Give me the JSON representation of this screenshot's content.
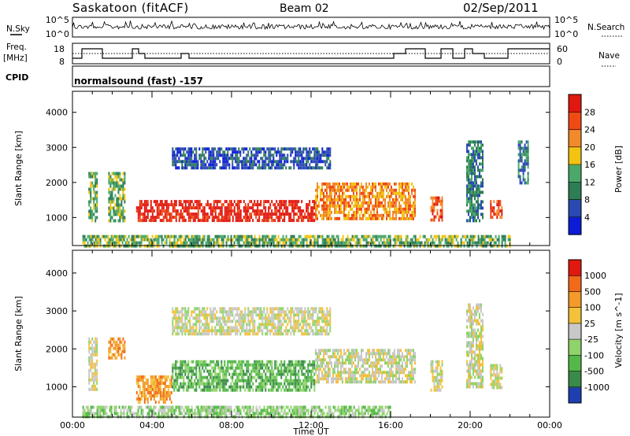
{
  "header": {
    "station": "Saskatoon (fitACF)",
    "beam": "Beam 02",
    "date": "02/Sep/2011"
  },
  "noise_panel": {
    "left_label": "N.Sky",
    "right_label": "N.Search",
    "left_ticks": [
      "10^5",
      "10^0"
    ],
    "right_ticks": [
      "10^5",
      "10^0"
    ]
  },
  "freq_panel": {
    "left_label_line1": "Freq.",
    "left_label_line2": "[MHz]",
    "right_label": "Nave",
    "left_ticks": [
      "18",
      "8"
    ],
    "right_ticks": [
      "60",
      "0"
    ]
  },
  "cpid": {
    "label": "CPID",
    "value": "normalsound (fast) -157"
  },
  "chart_data": [
    {
      "type": "heatmap",
      "title": "Power",
      "ylabel": "Slant Range [km]",
      "xlabel": "Time UT",
      "ylim": [
        200,
        4600
      ],
      "yticks": [
        "1000",
        "2000",
        "3000",
        "4000"
      ],
      "colorbar": {
        "label": "Power [dB]",
        "ticks": [
          "4",
          "8",
          "12",
          "16",
          "20",
          "24",
          "28"
        ],
        "colors": [
          "#0b1bd6",
          "#2a49b3",
          "#2d7d55",
          "#4aa86a",
          "#f2c411",
          "#f2892a",
          "#f04a14",
          "#e01810"
        ]
      },
      "echo_regions": [
        {
          "t0": 0.8,
          "t1": 1.2,
          "r0": 900,
          "r1": 2300,
          "level": 3
        },
        {
          "t0": 1.8,
          "t1": 2.6,
          "r0": 900,
          "r1": 2300,
          "level": 3
        },
        {
          "t0": 3.2,
          "t1": 8.8,
          "r0": 950,
          "r1": 1500,
          "level": 7
        },
        {
          "t0": 8.8,
          "t1": 12.2,
          "r0": 950,
          "r1": 1500,
          "level": 7
        },
        {
          "t0": 12.2,
          "t1": 17.2,
          "r0": 1000,
          "r1": 2000,
          "level": 5
        },
        {
          "t0": 5.0,
          "t1": 13.0,
          "r0": 2400,
          "r1": 3000,
          "level": 1
        },
        {
          "t0": 18.0,
          "t1": 18.6,
          "r0": 900,
          "r1": 1600,
          "level": 6
        },
        {
          "t0": 19.8,
          "t1": 20.6,
          "r0": 900,
          "r1": 3200,
          "level": 2
        },
        {
          "t0": 21.0,
          "t1": 21.6,
          "r0": 1000,
          "r1": 1500,
          "level": 6
        },
        {
          "t0": 22.4,
          "t1": 22.9,
          "r0": 2000,
          "r1": 3200,
          "level": 2
        },
        {
          "t0": 0.5,
          "t1": 22.0,
          "r0": 200,
          "r1": 500,
          "level": 3
        }
      ]
    },
    {
      "type": "heatmap",
      "title": "Velocity",
      "ylabel": "Slant Range [km]",
      "xlabel": "Time UT",
      "ylim": [
        200,
        4600
      ],
      "yticks": [
        "1000",
        "2000",
        "3000",
        "4000"
      ],
      "xticks": [
        "00:00",
        "04:00",
        "08:00",
        "12:00",
        "16:00",
        "20:00",
        "00:00"
      ],
      "colorbar": {
        "label": "Velocity [m s^-1]",
        "ticks": [
          "1000",
          "500",
          "100",
          "25",
          "-25",
          "-100",
          "-500",
          "-1000"
        ],
        "colors": [
          "#1e3fb0",
          "#3a8a4a",
          "#54b848",
          "#8fd46a",
          "#c8c8c8",
          "#f3c23a",
          "#f39a2a",
          "#f06a1a",
          "#e01810"
        ]
      },
      "echo_regions": [
        {
          "t0": 0.8,
          "t1": 1.2,
          "r0": 900,
          "r1": 2300,
          "level": 4
        },
        {
          "t0": 1.8,
          "t1": 2.6,
          "r0": 1800,
          "r1": 2300,
          "level": 6
        },
        {
          "t0": 3.2,
          "t1": 5.0,
          "r0": 600,
          "r1": 1300,
          "level": 6
        },
        {
          "t0": 5.0,
          "t1": 12.2,
          "r0": 900,
          "r1": 1700,
          "level": 2
        },
        {
          "t0": 12.2,
          "t1": 17.2,
          "r0": 1100,
          "r1": 2000,
          "level": 4
        },
        {
          "t0": 5.0,
          "t1": 13.0,
          "r0": 2400,
          "r1": 3100,
          "level": 4
        },
        {
          "t0": 18.0,
          "t1": 18.6,
          "r0": 900,
          "r1": 1700,
          "level": 4
        },
        {
          "t0": 19.8,
          "t1": 20.6,
          "r0": 1000,
          "r1": 3200,
          "level": 4
        },
        {
          "t0": 21.0,
          "t1": 21.6,
          "r0": 1000,
          "r1": 1600,
          "level": 4
        },
        {
          "t0": 0.5,
          "t1": 16.0,
          "r0": 200,
          "r1": 500,
          "level": 3
        }
      ]
    }
  ]
}
